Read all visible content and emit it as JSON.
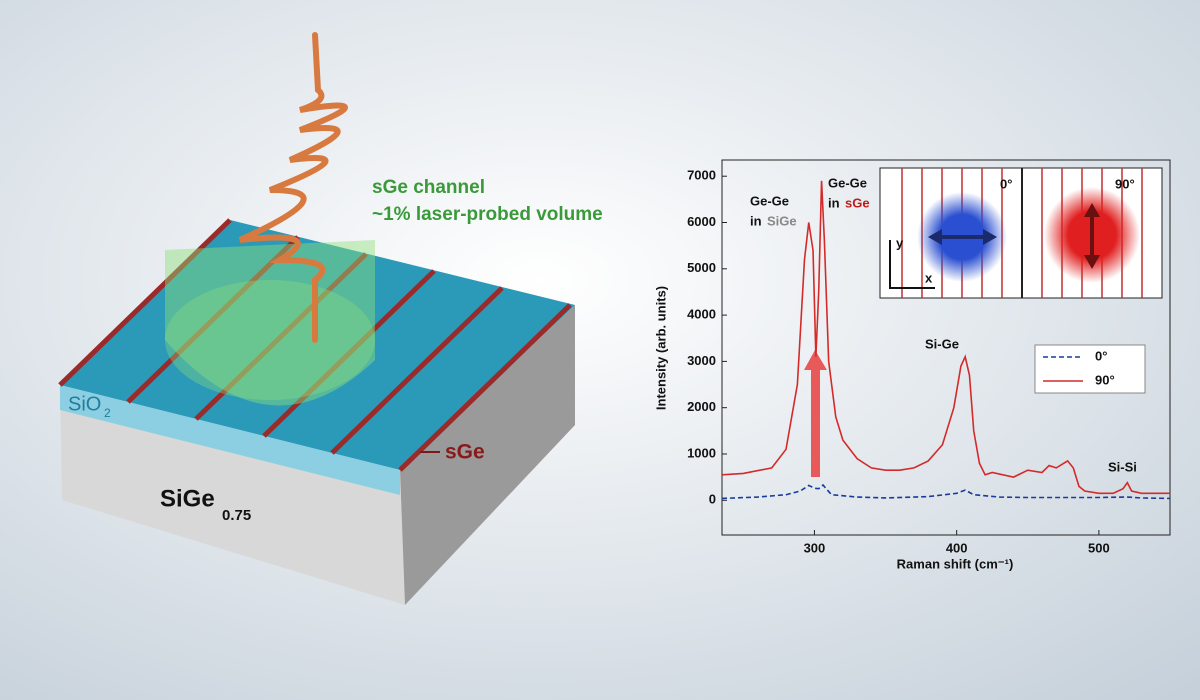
{
  "illustration": {
    "channel_label": "sGe channel",
    "volume_label": "~1% laser-probed volume",
    "oxide": "SiO",
    "oxide_sub": "2",
    "layer": "sGe",
    "substrate": "SiGe",
    "substrate_sub": "0.75"
  },
  "chart_data": {
    "type": "line",
    "xlabel": "Raman shift (cm⁻¹)",
    "ylabel": "Intensity (arb. units)",
    "xlim": [
      235,
      550
    ],
    "xticks": [
      300,
      400,
      500
    ],
    "ylim": [
      -750,
      7350
    ],
    "yticks": [
      0,
      1000,
      2000,
      3000,
      4000,
      5000,
      6000,
      7000
    ],
    "series": [
      {
        "name": "0°",
        "color": "#1a3a9c",
        "style": "dashed",
        "x": [
          235,
          260,
          280,
          290,
          296,
          300,
          303,
          306,
          312,
          330,
          350,
          380,
          400,
          406,
          412,
          430,
          450,
          500,
          520,
          530,
          550
        ],
        "values": [
          40,
          70,
          120,
          200,
          320,
          260,
          250,
          330,
          120,
          70,
          50,
          80,
          150,
          220,
          120,
          70,
          60,
          60,
          70,
          50,
          40
        ]
      },
      {
        "name": "90°",
        "color": "#d42a2a",
        "style": "solid",
        "x": [
          235,
          250,
          270,
          280,
          288,
          293,
          296,
          299,
          301,
          303,
          305,
          307,
          310,
          315,
          320,
          330,
          340,
          350,
          360,
          370,
          380,
          390,
          398,
          403,
          406,
          409,
          412,
          416,
          420,
          425,
          440,
          450,
          460,
          465,
          470,
          478,
          482,
          486,
          490,
          500,
          510,
          517,
          520,
          523,
          530,
          550
        ],
        "values": [
          550,
          580,
          700,
          1100,
          2500,
          5200,
          6000,
          5400,
          3100,
          4500,
          6900,
          5600,
          3000,
          1800,
          1300,
          900,
          700,
          650,
          650,
          700,
          850,
          1200,
          2000,
          2900,
          3100,
          2700,
          1500,
          800,
          550,
          600,
          500,
          650,
          600,
          750,
          700,
          850,
          700,
          300,
          200,
          150,
          150,
          250,
          380,
          200,
          150,
          150
        ]
      }
    ],
    "annotations": {
      "gege1_a": "Ge-Ge",
      "gege1_b": "in",
      "gege1_c": "SiGe",
      "gege2_a": "Ge-Ge",
      "gege2_b": "in",
      "gege2_c": "sGe",
      "sige": "Si-Ge",
      "sisi": "Si-Si"
    },
    "inset": {
      "left_angle": "0°",
      "right_angle": "90°",
      "y_axis": "y",
      "x_axis": "x"
    }
  }
}
